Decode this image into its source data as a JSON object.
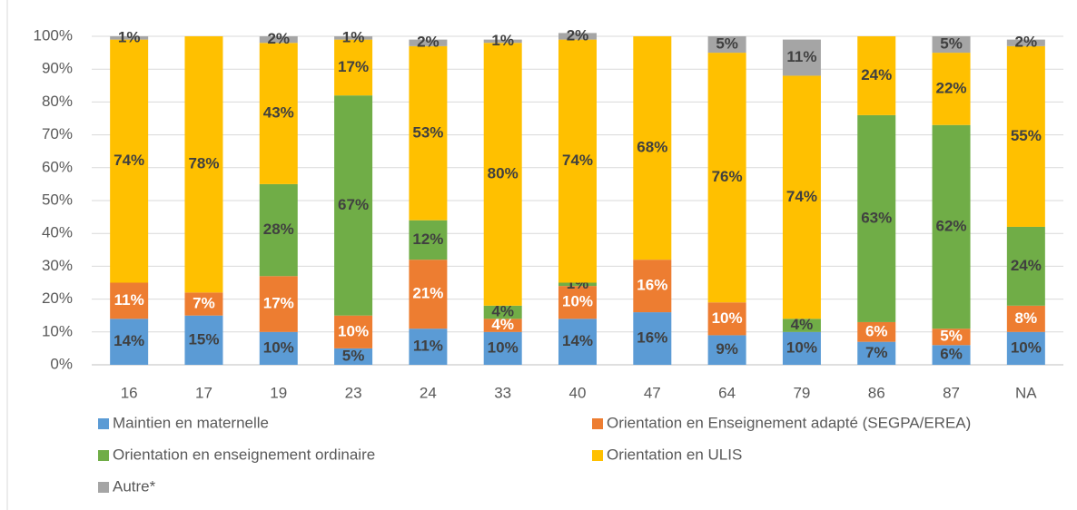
{
  "chart_data": {
    "type": "stacked_bar",
    "categories": [
      "16",
      "17",
      "19",
      "23",
      "24",
      "33",
      "40",
      "47",
      "64",
      "79",
      "86",
      "87",
      "NA"
    ],
    "series": [
      {
        "name": "Maintien en maternelle",
        "color": "#5b9bd5",
        "label_color": "#404040",
        "values": [
          14,
          15,
          10,
          5,
          11,
          10,
          14,
          16,
          9,
          10,
          7,
          6,
          10
        ],
        "value_labels": [
          "14%",
          "15%",
          "10%",
          "5%",
          "11%",
          "10%",
          "14%",
          "16%",
          "9%",
          "10%",
          "7%",
          "6%",
          "10%"
        ]
      },
      {
        "name": "Orientation en Enseignement adapté (SEGPA/EREA)",
        "color": "#ed7d31",
        "label_color": "#ffffff",
        "values": [
          11,
          7,
          17,
          10,
          21,
          4,
          10,
          16,
          10,
          null,
          6,
          5,
          8
        ],
        "value_labels": [
          "11%",
          "7%",
          "17%",
          "10%",
          "21%",
          "4%",
          "10%",
          "16%",
          "10%",
          null,
          "6%",
          "5%",
          "8%"
        ]
      },
      {
        "name": "Orientation en enseignement ordinaire",
        "color": "#70ad47",
        "label_color": "#404040",
        "values": [
          null,
          null,
          28,
          67,
          12,
          4,
          1,
          null,
          null,
          4,
          63,
          62,
          24
        ],
        "value_labels": [
          null,
          null,
          "28%",
          "67%",
          "12%",
          "4%",
          "1%",
          null,
          null,
          "4%",
          "63%",
          "62%",
          "24%"
        ]
      },
      {
        "name": "Orientation en ULIS",
        "color": "#ffc000",
        "label_color": "#404040",
        "values": [
          74,
          78,
          43,
          17,
          53,
          80,
          74,
          68,
          76,
          74,
          24,
          22,
          55
        ],
        "value_labels": [
          "74%",
          "78%",
          "43%",
          "17%",
          "53%",
          "80%",
          "74%",
          "68%",
          "76%",
          "74%",
          "24%",
          "22%",
          "55%"
        ]
      },
      {
        "name": "Autre*",
        "color": "#a5a5a5",
        "label_color": "#404040",
        "values": [
          1,
          null,
          2,
          1,
          2,
          1,
          2,
          null,
          5,
          11,
          null,
          5,
          2
        ],
        "value_labels": [
          "1%",
          null,
          "2%",
          "1%",
          "2%",
          "1%",
          "2%",
          null,
          "5%",
          "11%",
          null,
          "5%",
          "2%"
        ]
      }
    ],
    "ylim": [
      0,
      100
    ],
    "yticks": [
      {
        "value": 0,
        "label": "0%"
      },
      {
        "value": 10,
        "label": "10%"
      },
      {
        "value": 20,
        "label": "20%"
      },
      {
        "value": 30,
        "label": "30%"
      },
      {
        "value": 40,
        "label": "40%"
      },
      {
        "value": 50,
        "label": "50%"
      },
      {
        "value": 60,
        "label": "60%"
      },
      {
        "value": 70,
        "label": "70%"
      },
      {
        "value": 80,
        "label": "80%"
      },
      {
        "value": 90,
        "label": "90%"
      },
      {
        "value": 100,
        "label": "100%"
      }
    ],
    "grid": true,
    "legend": "bottom"
  }
}
